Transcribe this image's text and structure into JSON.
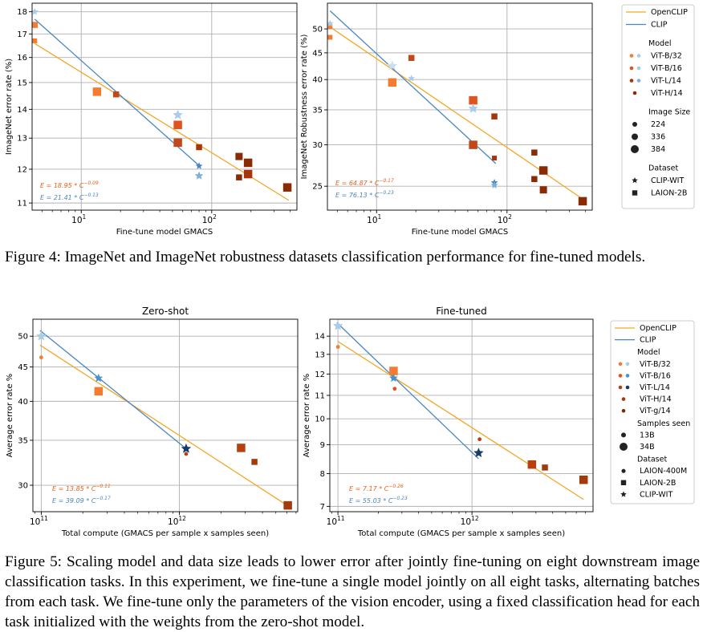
{
  "figure4_caption": "Figure 4: ImageNet and ImageNet robustness datasets classification performance for fine-tuned models.",
  "figure5_caption": "Figure 5: Scaling model and data size leads to lower error after jointly fine-tuning on eight downstream image classification tasks. In this experiment, we fine-tune a single model jointly on all eight tasks, alternating batches from each task. We fine-tune only the parameters of the vision encoder, using a fixed classification head for each task initialized with the weights from the zero-shot model.",
  "colors": {
    "openclip_line": "#f5a623",
    "clip_line": "#4a86c0",
    "openclip_eq": "#e8621a",
    "clip_eq": "#4a86c0",
    "grid": "#b0b0b0"
  },
  "legend_fig4": {
    "entries": [
      {
        "type": "line",
        "label": "OpenCLIP",
        "color": "#f5a623"
      },
      {
        "type": "line",
        "label": "CLIP",
        "color": "#4a86c0"
      },
      {
        "type": "heading",
        "label": "Model"
      },
      {
        "type": "pair",
        "label": "ViT-B/32",
        "c1": "#f47b30",
        "c2": "#a9cce8"
      },
      {
        "type": "pair",
        "label": "ViT-B/16",
        "c1": "#e0531d",
        "c2": "#a9cce8"
      },
      {
        "type": "pair",
        "label": "ViT-L/14",
        "c1": "#a5350a",
        "c2": "#7fb0d8"
      },
      {
        "type": "dot",
        "label": "ViT-H/14",
        "color": "#8a2b06"
      },
      {
        "type": "heading",
        "label": "Image Size"
      },
      {
        "type": "size",
        "label": "224",
        "r": 3
      },
      {
        "type": "size",
        "label": "336",
        "r": 4
      },
      {
        "type": "size",
        "label": "384",
        "r": 5
      },
      {
        "type": "heading",
        "label": "Dataset"
      },
      {
        "type": "marker",
        "label": "CLIP-WIT",
        "shape": "star"
      },
      {
        "type": "marker",
        "label": "LAION-2B",
        "shape": "square"
      }
    ]
  },
  "legend_fig5": {
    "entries": [
      {
        "type": "line",
        "label": "OpenCLIP",
        "color": "#f5a623"
      },
      {
        "type": "line",
        "label": "CLIP",
        "color": "#4a86c0"
      },
      {
        "type": "heading",
        "label": "Model"
      },
      {
        "type": "pair",
        "label": "ViT-B/32",
        "c1": "#f47b30",
        "c2": "#a9cce8"
      },
      {
        "type": "pair",
        "label": "ViT-B/16",
        "c1": "#e0531d",
        "c2": "#4a90cc"
      },
      {
        "type": "pair",
        "label": "ViT-L/14",
        "c1": "#b8400f",
        "c2": "#173a6b"
      },
      {
        "type": "dot",
        "label": "ViT-H/14",
        "color": "#a23a0b"
      },
      {
        "type": "dot",
        "label": "ViT-g/14",
        "color": "#7a2a05"
      },
      {
        "type": "heading",
        "label": "Samples seen"
      },
      {
        "type": "size",
        "label": "13B",
        "r": 3
      },
      {
        "type": "size",
        "label": "34B",
        "r": 5
      },
      {
        "type": "heading",
        "label": "Dataset"
      },
      {
        "type": "marker",
        "label": "LAION-400M",
        "shape": "circle"
      },
      {
        "type": "marker",
        "label": "LAION-2B",
        "shape": "square"
      },
      {
        "type": "marker",
        "label": "CLIP-WIT",
        "shape": "star"
      }
    ]
  },
  "chart_data": [
    {
      "id": "fig4_left",
      "type": "scatter",
      "title": "",
      "xlabel": "Fine-tune model GMACS",
      "ylabel": "ImageNet error rate (%)",
      "xscale": "log",
      "yscale": "log",
      "xlim": [
        4.2,
        450
      ],
      "ylim": [
        10.8,
        18.4
      ],
      "xticks": [
        {
          "v": 10,
          "label": "10",
          "sup": "1"
        },
        {
          "v": 100,
          "label": "10",
          "sup": "2"
        }
      ],
      "yticks": [
        11,
        12,
        13,
        14,
        15,
        16,
        17,
        18
      ],
      "grid": true,
      "fit_lines": [
        {
          "name": "OpenCLIP",
          "color": "#f5a623",
          "a": 18.95,
          "b": -0.09,
          "x": [
            4.4,
            390
          ]
        },
        {
          "name": "CLIP",
          "color": "#4a86c0",
          "a": 21.41,
          "b": -0.13,
          "x": [
            4.4,
            82
          ]
        }
      ],
      "equations": [
        {
          "text": "E = 18.95 * C",
          "exp": "−0.09",
          "color": "#e8621a"
        },
        {
          "text": "E = 21.41 * C",
          "exp": "−0.13",
          "color": "#4a86c0"
        }
      ],
      "points": [
        {
          "x": 4.4,
          "y": 17.4,
          "shape": "square",
          "size": 5,
          "color": "#f47b30"
        },
        {
          "x": 4.4,
          "y": 16.7,
          "shape": "square",
          "size": 4,
          "color": "#f47b30"
        },
        {
          "x": 4.4,
          "y": 18.0,
          "shape": "star",
          "size": 5,
          "color": "#a9cce8"
        },
        {
          "x": 13.2,
          "y": 14.65,
          "shape": "square",
          "size": 7,
          "color": "#f47b30"
        },
        {
          "x": 18.5,
          "y": 14.55,
          "shape": "square",
          "size": 5,
          "color": "#c2481a"
        },
        {
          "x": 55,
          "y": 13.8,
          "shape": "star",
          "size": 7,
          "color": "#a9cce8"
        },
        {
          "x": 55,
          "y": 13.45,
          "shape": "square",
          "size": 7,
          "color": "#e0531d"
        },
        {
          "x": 55,
          "y": 12.85,
          "shape": "square",
          "size": 7,
          "color": "#c2481a"
        },
        {
          "x": 80,
          "y": 12.7,
          "shape": "square",
          "size": 5,
          "color": "#a5350a"
        },
        {
          "x": 80,
          "y": 12.1,
          "shape": "star",
          "size": 5,
          "color": "#4a86c0"
        },
        {
          "x": 80,
          "y": 11.8,
          "shape": "star",
          "size": 6,
          "color": "#7fb0d8"
        },
        {
          "x": 162,
          "y": 12.4,
          "shape": "square",
          "size": 6,
          "color": "#8a2b06"
        },
        {
          "x": 162,
          "y": 11.75,
          "shape": "square",
          "size": 5,
          "color": "#8a2b06"
        },
        {
          "x": 190,
          "y": 12.2,
          "shape": "square",
          "size": 7,
          "color": "#8a2b06"
        },
        {
          "x": 190,
          "y": 11.85,
          "shape": "square",
          "size": 7,
          "color": "#a5350a"
        },
        {
          "x": 380,
          "y": 11.45,
          "shape": "square",
          "size": 7,
          "color": "#8a2b06"
        }
      ]
    },
    {
      "id": "fig4_right",
      "type": "scatter",
      "title": "",
      "xlabel": "Fine-tune model GMACS",
      "ylabel": "ImageNet Robustness error rate (%)",
      "xscale": "log",
      "yscale": "log",
      "xlim": [
        4.2,
        450
      ],
      "ylim": [
        22.5,
        56
      ],
      "xticks": [
        {
          "v": 10,
          "label": "10",
          "sup": "1"
        },
        {
          "v": 100,
          "label": "10",
          "sup": "2"
        }
      ],
      "yticks": [
        25,
        30,
        35,
        40,
        45,
        50
      ],
      "grid": true,
      "fit_lines": [
        {
          "name": "OpenCLIP",
          "color": "#f5a623",
          "a": 64.87,
          "b": -0.17,
          "x": [
            4.4,
            390
          ]
        },
        {
          "name": "CLIP",
          "color": "#4a86c0",
          "a": 76.13,
          "b": -0.23,
          "x": [
            4.4,
            82
          ]
        }
      ],
      "equations": [
        {
          "text": "E = 64.87 * C",
          "exp": "−0.17",
          "color": "#e8621a"
        },
        {
          "text": "E = 76.13 * C",
          "exp": "−0.23",
          "color": "#4a86c0"
        }
      ],
      "points": [
        {
          "x": 4.4,
          "y": 50.5,
          "shape": "square",
          "size": 4,
          "color": "#f47b30"
        },
        {
          "x": 4.4,
          "y": 48.2,
          "shape": "square",
          "size": 4,
          "color": "#f47b30"
        },
        {
          "x": 4.4,
          "y": 51.2,
          "shape": "star",
          "size": 5,
          "color": "#a9cce8"
        },
        {
          "x": 13.2,
          "y": 42.5,
          "shape": "star",
          "size": 7,
          "color": "#c8dff0"
        },
        {
          "x": 13.2,
          "y": 39.5,
          "shape": "square",
          "size": 7,
          "color": "#f47b30"
        },
        {
          "x": 18.5,
          "y": 44.0,
          "shape": "square",
          "size": 5,
          "color": "#c2481a"
        },
        {
          "x": 18.5,
          "y": 40.2,
          "shape": "star",
          "size": 5,
          "color": "#a9cce8"
        },
        {
          "x": 55,
          "y": 36.5,
          "shape": "square",
          "size": 7,
          "color": "#e0531d"
        },
        {
          "x": 55,
          "y": 35.2,
          "shape": "star",
          "size": 7,
          "color": "#a9cce8"
        },
        {
          "x": 55,
          "y": 30.0,
          "shape": "square",
          "size": 7,
          "color": "#c2481a"
        },
        {
          "x": 80,
          "y": 34.0,
          "shape": "square",
          "size": 5,
          "color": "#a5350a"
        },
        {
          "x": 80,
          "y": 28.3,
          "shape": "square",
          "size": 4,
          "color": "#a5350a"
        },
        {
          "x": 80,
          "y": 25.4,
          "shape": "star",
          "size": 5,
          "color": "#4a86c0"
        },
        {
          "x": 80,
          "y": 25.1,
          "shape": "star",
          "size": 5,
          "color": "#7fb0d8"
        },
        {
          "x": 162,
          "y": 29.0,
          "shape": "square",
          "size": 5,
          "color": "#8a2b06"
        },
        {
          "x": 162,
          "y": 25.8,
          "shape": "square",
          "size": 5,
          "color": "#8a2b06"
        },
        {
          "x": 190,
          "y": 26.8,
          "shape": "square",
          "size": 7,
          "color": "#8a2b06"
        },
        {
          "x": 190,
          "y": 24.6,
          "shape": "square",
          "size": 6,
          "color": "#8a2b06"
        },
        {
          "x": 380,
          "y": 23.4,
          "shape": "square",
          "size": 7,
          "color": "#8a2b06"
        }
      ]
    },
    {
      "id": "fig5_left",
      "type": "scatter",
      "title": "Zero-shot",
      "xlabel": "Total compute (GMACS per sample x samples seen)",
      "ylabel": "Average error rate %",
      "xscale": "log",
      "yscale": "log",
      "xlim": [
        87000000000.0,
        7200000000000.0
      ],
      "ylim": [
        27.4,
        53
      ],
      "xticks": [
        {
          "v": 100000000000.0,
          "label": "10",
          "sup": "11"
        },
        {
          "v": 1000000000000.0,
          "label": "10",
          "sup": "12"
        }
      ],
      "yticks": [
        30,
        35,
        40,
        45,
        50
      ],
      "grid": true,
      "fit_lines": [
        {
          "name": "OpenCLIP",
          "color": "#f5a623",
          "a": 13.85,
          "b": -0.11,
          "x": [
            98000000000.0,
            6200000000000.0
          ],
          "ya": 48.5,
          "yb": 27.9
        },
        {
          "name": "CLIP",
          "color": "#4a86c0",
          "a": 39.09,
          "b": -0.17,
          "x": [
            98000000000.0,
            1120000000000.0
          ],
          "ya": 51.0,
          "yb": 34.0
        }
      ],
      "equations": [
        {
          "text": "E = 13.85 * C",
          "exp": "−0.11",
          "color": "#e8621a"
        },
        {
          "text": "E = 39.09 * C",
          "exp": "−0.17",
          "color": "#4a86c0"
        }
      ],
      "points": [
        {
          "x": 100000000000.0,
          "y": 50.0,
          "shape": "star",
          "size": 7,
          "color": "#a9cce8"
        },
        {
          "x": 100000000000.0,
          "y": 46.5,
          "shape": "circle",
          "size": 4,
          "color": "#f47b30"
        },
        {
          "x": 260000000000.0,
          "y": 43.3,
          "shape": "star",
          "size": 6,
          "color": "#4a90cc"
        },
        {
          "x": 260000000000.0,
          "y": 41.4,
          "shape": "square",
          "size": 7,
          "color": "#f47b30"
        },
        {
          "x": 1120000000000.0,
          "y": 34.0,
          "shape": "star",
          "size": 7,
          "color": "#173a6b"
        },
        {
          "x": 1120000000000.0,
          "y": 33.4,
          "shape": "circle",
          "size": 4,
          "color": "#b8400f"
        },
        {
          "x": 2800000000000.0,
          "y": 34.1,
          "shape": "square",
          "size": 7,
          "color": "#b8400f"
        },
        {
          "x": 3500000000000.0,
          "y": 32.5,
          "shape": "square",
          "size": 5,
          "color": "#a23a0b"
        },
        {
          "x": 6100000000000.0,
          "y": 28.0,
          "shape": "square",
          "size": 7,
          "color": "#a23a0b"
        }
      ]
    },
    {
      "id": "fig5_right",
      "type": "scatter",
      "title": "Fine-tuned",
      "xlabel": "Total compute (GMACS per sample x samples seen)",
      "ylabel": "Average error rate %",
      "xscale": "log",
      "yscale": "log",
      "xlim": [
        87000000000.0,
        8000000000000.0
      ],
      "ylim": [
        6.85,
        15.0
      ],
      "xticks": [
        {
          "v": 100000000000.0,
          "label": "10",
          "sup": "11"
        },
        {
          "v": 1000000000000.0,
          "label": "10",
          "sup": "12"
        }
      ],
      "yticks": [
        7,
        8,
        9,
        10,
        11,
        12,
        13,
        14
      ],
      "grid": true,
      "fit_lines": [
        {
          "name": "OpenCLIP",
          "color": "#f5a623",
          "a": 7.17,
          "b": -0.26,
          "x": [
            100000000000.0,
            6800000000000.0
          ],
          "ya": 13.7,
          "yb": 7.2
        },
        {
          "name": "CLIP",
          "color": "#4a86c0",
          "a": 55.03,
          "b": -0.23,
          "x": [
            98000000000.0,
            1120000000000.0
          ],
          "ya": 14.8,
          "yb": 8.5
        }
      ],
      "equations": [
        {
          "text": "E = 7.17 * C",
          "exp": "−0.26",
          "color": "#e8621a"
        },
        {
          "text": "E = 55.03 * C",
          "exp": "−0.23",
          "color": "#4a86c0"
        }
      ],
      "points": [
        {
          "x": 100000000000.0,
          "y": 14.6,
          "shape": "star",
          "size": 7,
          "color": "#a9cce8"
        },
        {
          "x": 100000000000.0,
          "y": 13.4,
          "shape": "circle",
          "size": 4,
          "color": "#f47b30"
        },
        {
          "x": 260000000000.0,
          "y": 12.15,
          "shape": "square",
          "size": 7,
          "color": "#f47b30"
        },
        {
          "x": 260000000000.0,
          "y": 11.8,
          "shape": "star",
          "size": 6,
          "color": "#4a90cc"
        },
        {
          "x": 265000000000.0,
          "y": 11.3,
          "shape": "circle",
          "size": 4,
          "color": "#e0531d"
        },
        {
          "x": 1140000000000.0,
          "y": 9.2,
          "shape": "circle",
          "size": 4,
          "color": "#b8400f"
        },
        {
          "x": 1120000000000.0,
          "y": 8.7,
          "shape": "star",
          "size": 7,
          "color": "#173a6b"
        },
        {
          "x": 2800000000000.0,
          "y": 8.3,
          "shape": "square",
          "size": 7,
          "color": "#b8400f"
        },
        {
          "x": 3500000000000.0,
          "y": 8.2,
          "shape": "square",
          "size": 5,
          "color": "#a23a0b"
        },
        {
          "x": 6800000000000.0,
          "y": 7.8,
          "shape": "square",
          "size": 7,
          "color": "#a23a0b"
        }
      ]
    }
  ]
}
